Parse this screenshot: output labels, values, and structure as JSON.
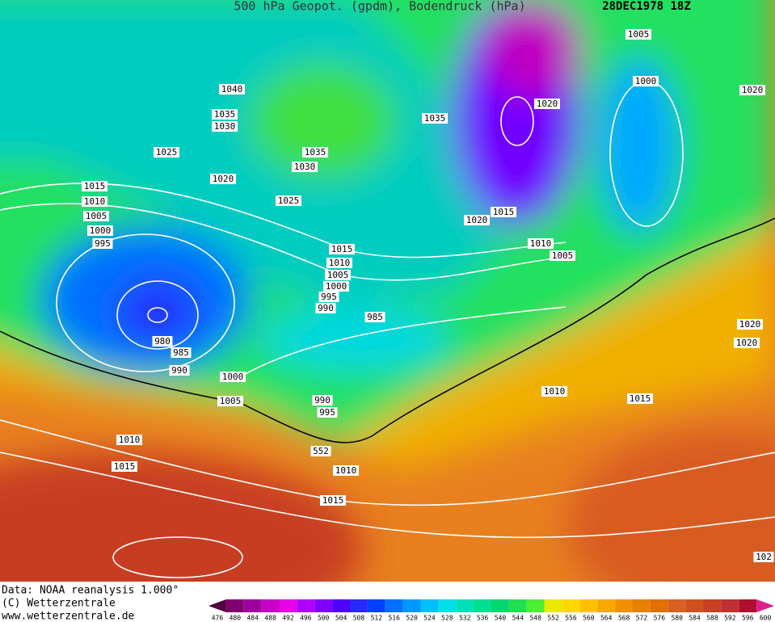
{
  "header": {
    "title": "500 hPa Geopot. (gpdm), Bodendruck (hPa)",
    "date": "28DEC1978 18Z"
  },
  "isobar_labels": [
    1040,
    1035,
    1030,
    1025,
    1020,
    1015,
    1010,
    1005,
    1000,
    995,
    1035,
    1030,
    1025,
    1035,
    1005,
    1000,
    1020,
    1020,
    1020,
    1015,
    1010,
    1005,
    1015,
    1010,
    1005,
    1000,
    995,
    990,
    985,
    980,
    985,
    990,
    1000,
    1005,
    990,
    995,
    552,
    1010,
    1015,
    1010,
    1015,
    1010,
    1015,
    1020,
    1020,
    102
  ],
  "footer": {
    "lines": [
      "Data: NOAA reanalysis 1.000°",
      "(C) Wetterzentrale",
      "www.wetterzentrale.de"
    ]
  },
  "colorbar": {
    "labels": [
      476,
      480,
      484,
      488,
      492,
      496,
      500,
      504,
      508,
      512,
      516,
      520,
      524,
      528,
      532,
      536,
      540,
      544,
      548,
      552,
      556,
      560,
      564,
      568,
      572,
      576,
      580,
      584,
      588,
      592,
      596,
      600
    ],
    "colors": [
      "#500040",
      "#800070",
      "#a000a0",
      "#c800c8",
      "#e800e8",
      "#b000ff",
      "#8000ff",
      "#5000ff",
      "#2828ff",
      "#0040ff",
      "#0070ff",
      "#0098ff",
      "#00c0ff",
      "#00e0e8",
      "#00e0b8",
      "#00e090",
      "#00d870",
      "#20e050",
      "#48f030",
      "#e8e800",
      "#ffd800",
      "#ffc000",
      "#f8a800",
      "#f09000",
      "#e88000",
      "#e07000",
      "#d86020",
      "#d05020",
      "#c84020",
      "#c03030",
      "#b01030",
      "#e0208a"
    ]
  }
}
